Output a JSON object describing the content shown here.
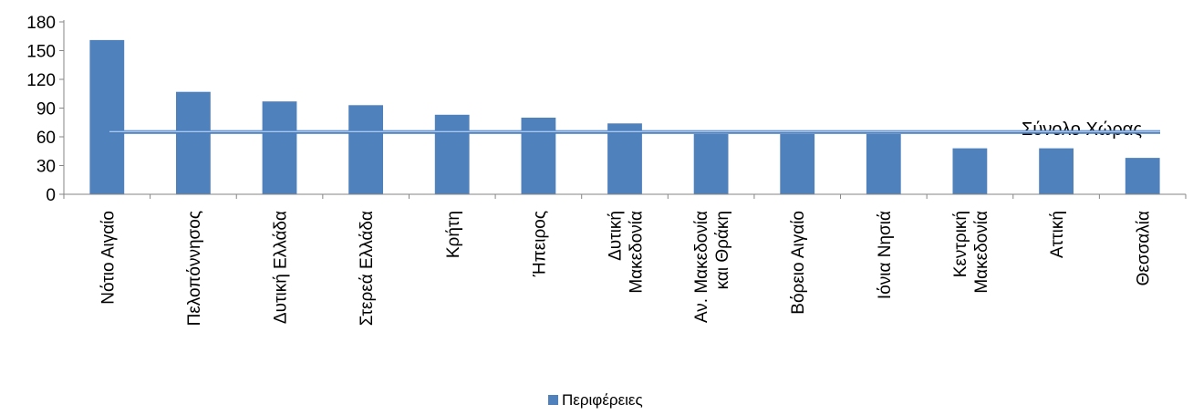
{
  "chart_data": {
    "type": "bar",
    "categories": [
      [
        "Νότιο Αιγαίο"
      ],
      [
        "Πελοπόννησος"
      ],
      [
        "Δυτική Ελλάδα"
      ],
      [
        "Στερεά Ελλάδα"
      ],
      [
        "Κρήτη"
      ],
      [
        "Ήπειρος"
      ],
      [
        "Δυτική",
        "Μακεδονία"
      ],
      [
        "Αν. Μακεδονία",
        "και Θράκη"
      ],
      [
        "Βόρειο Αιγαίο"
      ],
      [
        "Ιόνια Νησιά"
      ],
      [
        "Κεντρική",
        "Μακεδονία"
      ],
      [
        "Αττική"
      ],
      [
        "Θεσσαλία"
      ]
    ],
    "series": [
      {
        "name": "Περιφέρειες",
        "color": "#4f81bd",
        "values": [
          161,
          107,
          97,
          93,
          83,
          80,
          74,
          63,
          63,
          63,
          48,
          48,
          38
        ]
      }
    ],
    "reference_line": {
      "label": "Σύνολο Χώρας",
      "value": 65,
      "color": "#4a7fc1"
    },
    "yticks": [
      "0",
      "30",
      "60",
      "90",
      "120",
      "150",
      "180"
    ],
    "ylim": [
      0,
      180
    ],
    "grid": false,
    "legend_position": "bottom-center"
  }
}
